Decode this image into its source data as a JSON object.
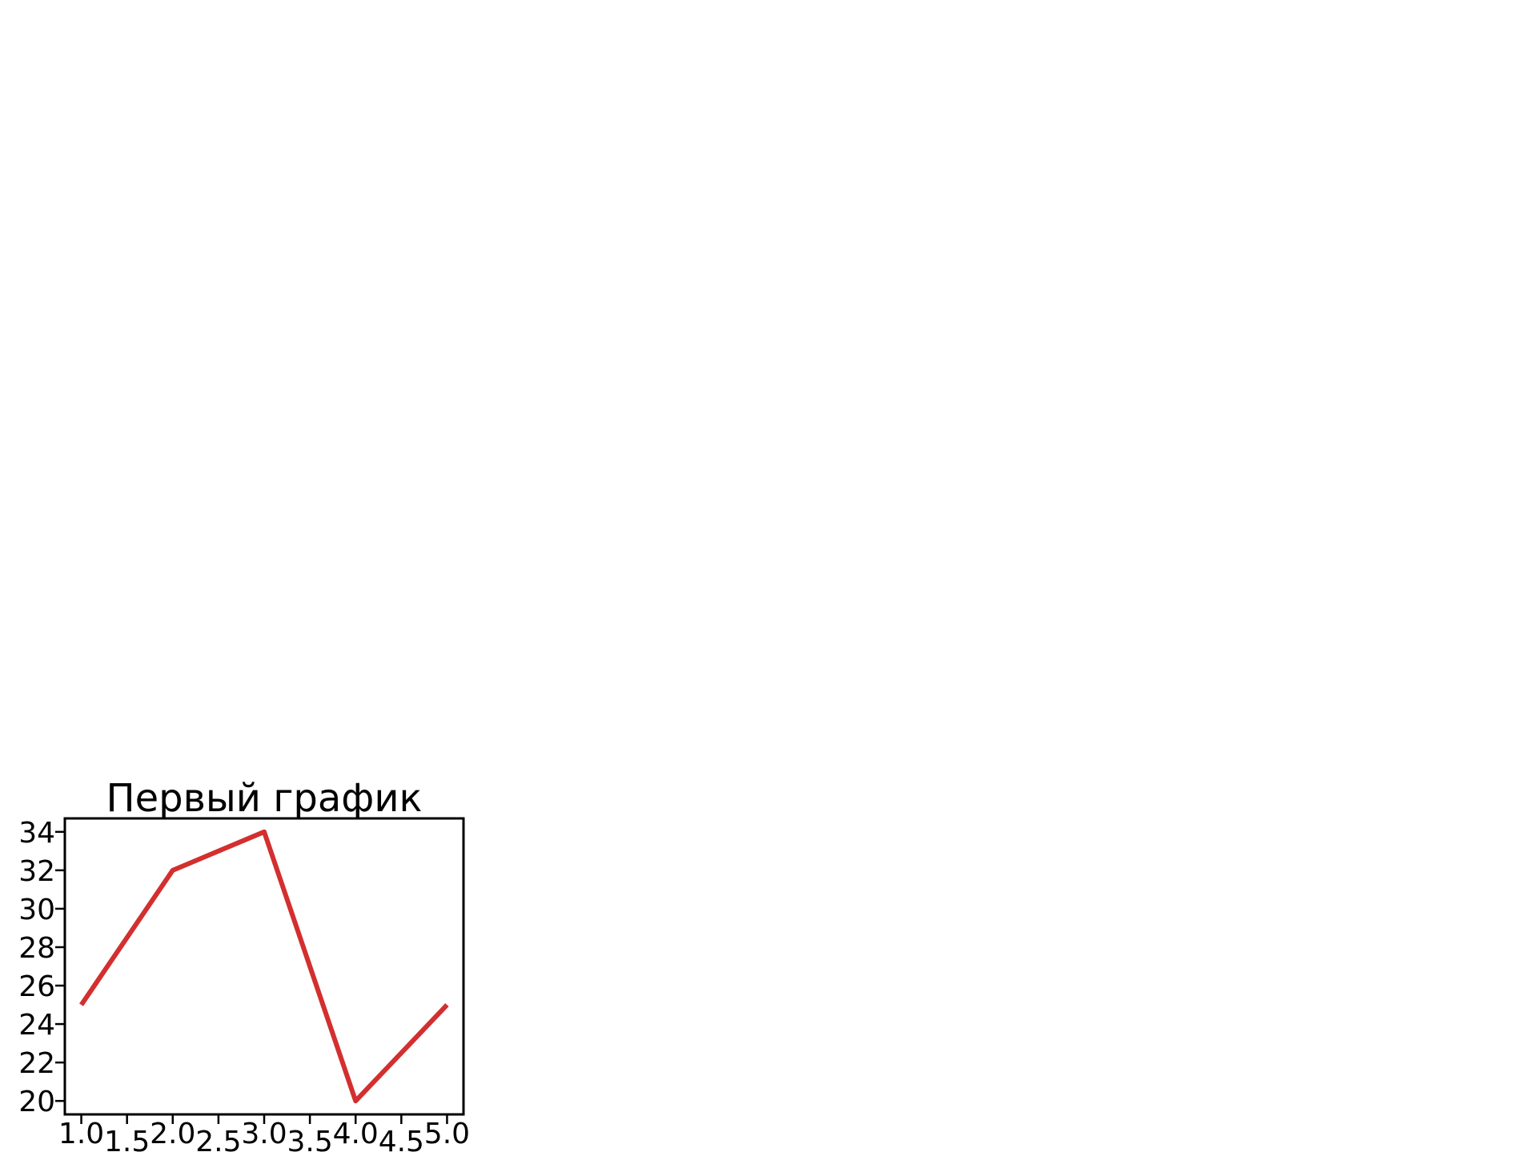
{
  "chart_data": {
    "type": "line",
    "title": "Первый график",
    "xlabel": "",
    "ylabel": "",
    "x": [
      1,
      2,
      3,
      4,
      5
    ],
    "series": [
      {
        "values": [
          25,
          32,
          34,
          20,
          25
        ],
        "color": "#d32f2f"
      }
    ],
    "xlim": [
      0.82,
      5.18
    ],
    "ylim": [
      19.3,
      34.7
    ],
    "xticks": [
      "1.0",
      "1.5",
      "2.0",
      "2.5",
      "3.0",
      "3.5",
      "4.0",
      "4.5",
      "5.0"
    ],
    "yticks": [
      "20",
      "22",
      "24",
      "26",
      "28",
      "30",
      "32",
      "34"
    ],
    "grid": false,
    "legend": "none"
  }
}
